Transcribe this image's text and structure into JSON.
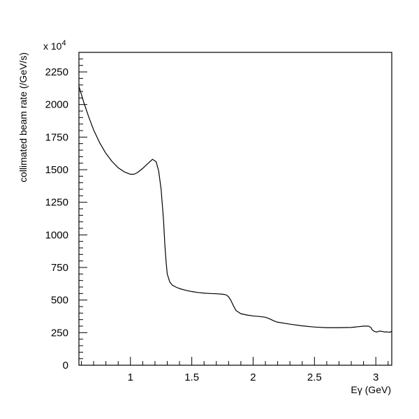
{
  "chart_data": {
    "type": "line",
    "title": "",
    "xlabel": "Eγ (GeV)",
    "ylabel": "collimated beam rate (/GeV/s)",
    "y_multiplier_label": "x 10",
    "y_multiplier_exponent": "4",
    "xlim": [
      0.58,
      3.13
    ],
    "ylim": [
      0,
      2400
    ],
    "x_ticks": [
      {
        "value": 1,
        "label": "1"
      },
      {
        "value": 1.5,
        "label": "1.5"
      },
      {
        "value": 2,
        "label": "2"
      },
      {
        "value": 2.5,
        "label": "2.5"
      },
      {
        "value": 3,
        "label": "3"
      }
    ],
    "y_ticks": [
      {
        "value": 0,
        "label": "0"
      },
      {
        "value": 250,
        "label": "250"
      },
      {
        "value": 500,
        "label": "500"
      },
      {
        "value": 750,
        "label": "750"
      },
      {
        "value": 1000,
        "label": "1000"
      },
      {
        "value": 1250,
        "label": "1250"
      },
      {
        "value": 1500,
        "label": "1500"
      },
      {
        "value": 1750,
        "label": "1750"
      },
      {
        "value": 2000,
        "label": "2000"
      },
      {
        "value": 2250,
        "label": "2250"
      }
    ],
    "x_minor_step": 0.1,
    "y_minor_step": 50,
    "grid": false,
    "legend": "none",
    "line_color": "#000000",
    "series": [
      {
        "x": [
          0.58,
          0.62,
          0.66,
          0.7,
          0.75,
          0.8,
          0.85,
          0.9,
          0.95,
          1.0,
          1.03,
          1.06,
          1.1,
          1.14,
          1.18,
          1.21,
          1.23,
          1.25,
          1.27,
          1.28,
          1.29,
          1.3,
          1.32,
          1.34,
          1.37,
          1.4,
          1.45,
          1.5,
          1.55,
          1.6,
          1.65,
          1.7,
          1.75,
          1.78,
          1.8,
          1.82,
          1.84,
          1.86,
          1.9,
          1.95,
          2.0,
          2.05,
          2.1,
          2.13,
          2.17,
          2.2,
          2.3,
          2.4,
          2.5,
          2.6,
          2.7,
          2.8,
          2.85,
          2.9,
          2.94,
          2.96,
          2.97,
          2.99,
          3.01,
          3.03,
          3.05,
          3.07,
          3.09,
          3.11,
          3.13
        ],
        "y": [
          2140,
          2015,
          1905,
          1805,
          1705,
          1625,
          1563,
          1515,
          1483,
          1465,
          1465,
          1480,
          1510,
          1545,
          1580,
          1560,
          1490,
          1350,
          1110,
          930,
          800,
          700,
          640,
          615,
          600,
          588,
          575,
          565,
          558,
          553,
          550,
          548,
          545,
          540,
          525,
          495,
          455,
          420,
          395,
          385,
          378,
          374,
          368,
          358,
          340,
          330,
          315,
          302,
          293,
          288,
          288,
          290,
          295,
          300,
          300,
          290,
          272,
          258,
          255,
          262,
          260,
          255,
          256,
          252,
          260
        ]
      }
    ]
  }
}
